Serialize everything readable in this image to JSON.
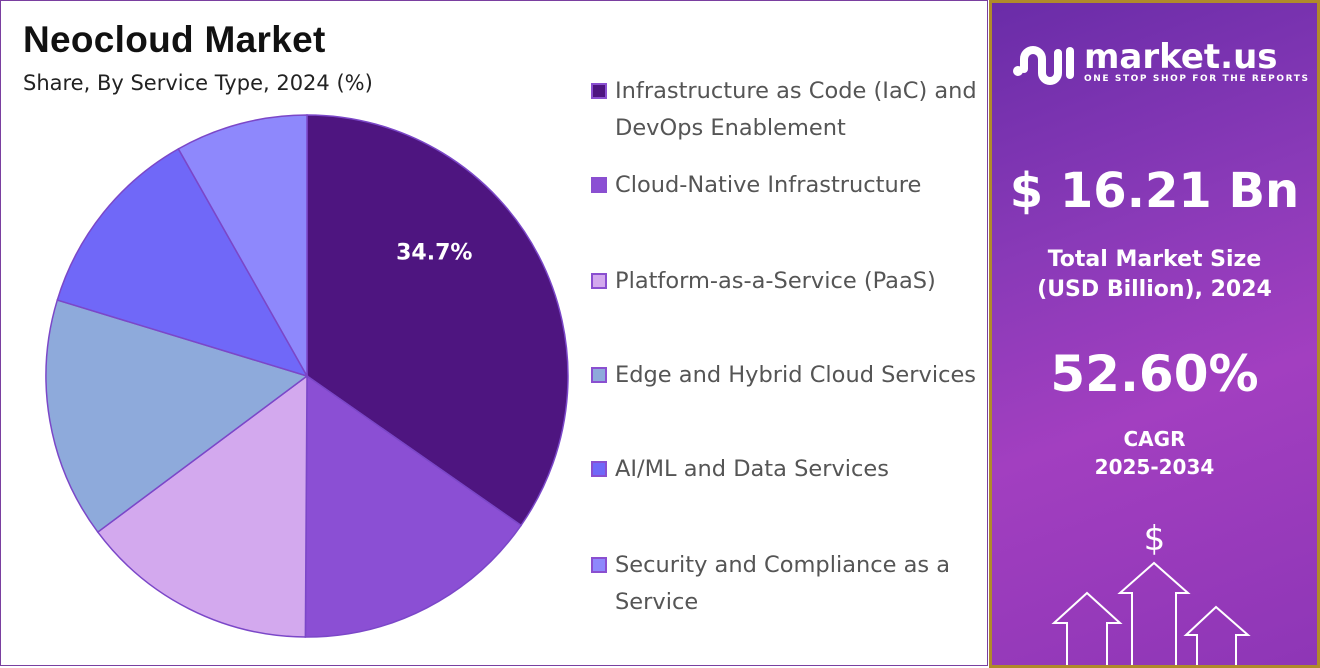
{
  "header": {
    "title": "Neocloud Market",
    "subtitle": "Share, By Service Type, 2024 (%)"
  },
  "chart_data": {
    "type": "pie",
    "title": "Neocloud Market",
    "subtitle": "Share, By Service Type, 2024 (%)",
    "legend_placement": "right",
    "categories": [
      "Infrastructure as Code (IaC) and DevOps Enablement",
      "Cloud-Native Infrastructure",
      "Platform-as-a-Service (PaaS)",
      "Edge and Hybrid Cloud Services",
      "AI/ML and Data Services",
      "Security and Compliance as a Service"
    ],
    "values": [
      34.7,
      15.4,
      14.7,
      14.9,
      12.1,
      8.2
    ],
    "colors": [
      "#4e1580",
      "#8b4fd4",
      "#d3a9ee",
      "#8eaadb",
      "#7068f8",
      "#8e88fc"
    ],
    "data_labels": [
      "34.7%",
      "",
      "",
      "",
      "",
      ""
    ]
  },
  "legend": [
    {
      "label": "Infrastructure as Code (IaC) and DevOps Enablement"
    },
    {
      "label": "Cloud-Native Infrastructure"
    },
    {
      "label": "Platform-as-a-Service (PaaS)"
    },
    {
      "label": "Edge and Hybrid Cloud Services"
    },
    {
      "label": "AI/ML and Data Services"
    },
    {
      "label": "Security and Compliance as a Service"
    }
  ],
  "panel": {
    "logo_name": "market.us",
    "logo_tagline": "ONE STOP SHOP FOR THE REPORTS",
    "market_size": "$ 16.21 Bn",
    "market_size_label_1": "Total Market Size",
    "market_size_label_2": "(USD Billion), 2024",
    "cagr": "52.60%",
    "cagr_label_1": "CAGR",
    "cagr_label_2": "2025-2034",
    "dollar_symbol": "$"
  }
}
